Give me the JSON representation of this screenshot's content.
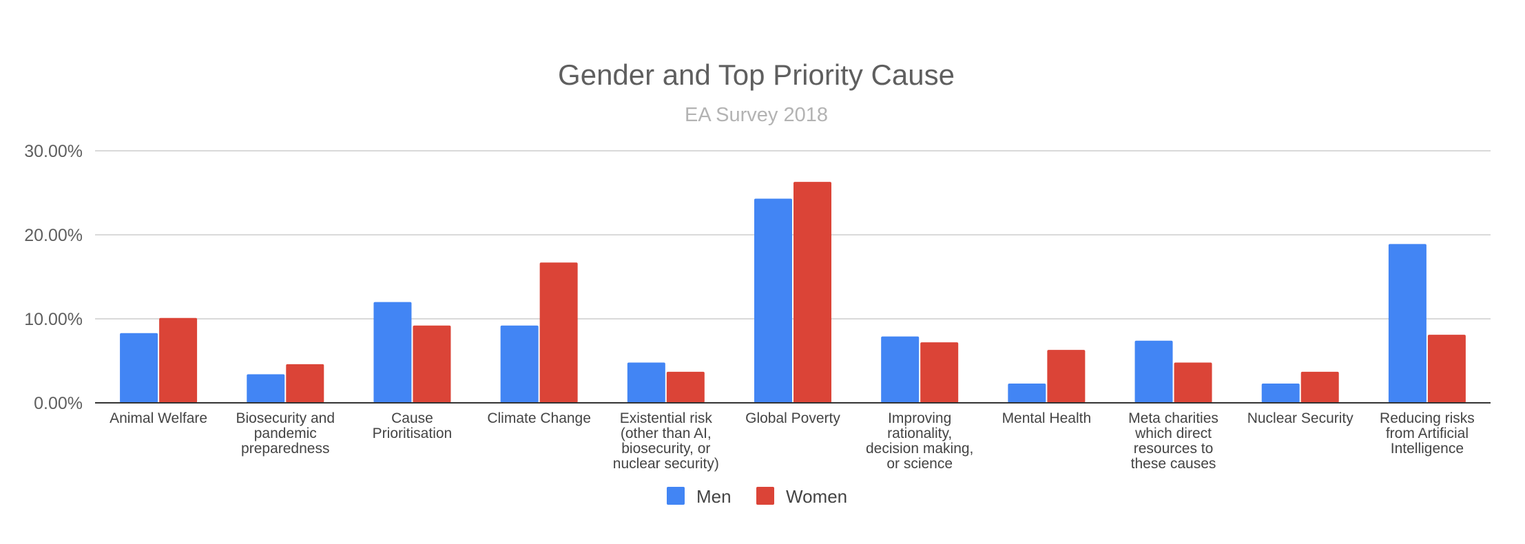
{
  "chart_data": {
    "type": "bar",
    "title": "Gender and Top Priority Cause",
    "subtitle": "EA Survey 2018",
    "xlabel": "",
    "ylabel": "",
    "ylim": [
      0,
      30
    ],
    "yticks": [
      {
        "value": 0,
        "label": "0.00%"
      },
      {
        "value": 10,
        "label": "10.00%"
      },
      {
        "value": 20,
        "label": "20.00%"
      },
      {
        "value": 30,
        "label": "30.00%"
      }
    ],
    "grid": true,
    "legend_position": "bottom",
    "categories": [
      [
        "Animal Welfare"
      ],
      [
        "Biosecurity and",
        "pandemic",
        "preparedness"
      ],
      [
        "Cause",
        "Prioritisation"
      ],
      [
        "Climate Change"
      ],
      [
        "Existential risk",
        "(other than AI,",
        "biosecurity, or",
        "nuclear security)"
      ],
      [
        "Global Poverty"
      ],
      [
        "Improving",
        "rationality,",
        "decision making,",
        "or science"
      ],
      [
        "Mental Health"
      ],
      [
        "Meta charities",
        "which direct",
        "resources to",
        "these causes"
      ],
      [
        "Nuclear Security"
      ],
      [
        "Reducing risks",
        "from Artificial",
        "Intelligence"
      ]
    ],
    "series": [
      {
        "name": "Men",
        "color": "#4285f4",
        "values": [
          8.3,
          3.4,
          12.0,
          9.2,
          4.8,
          24.3,
          7.9,
          2.3,
          7.4,
          2.3,
          18.9
        ]
      },
      {
        "name": "Women",
        "color": "#db4437",
        "values": [
          10.1,
          4.6,
          9.2,
          16.7,
          3.7,
          26.3,
          7.2,
          6.3,
          4.8,
          3.7,
          8.1
        ]
      }
    ]
  }
}
